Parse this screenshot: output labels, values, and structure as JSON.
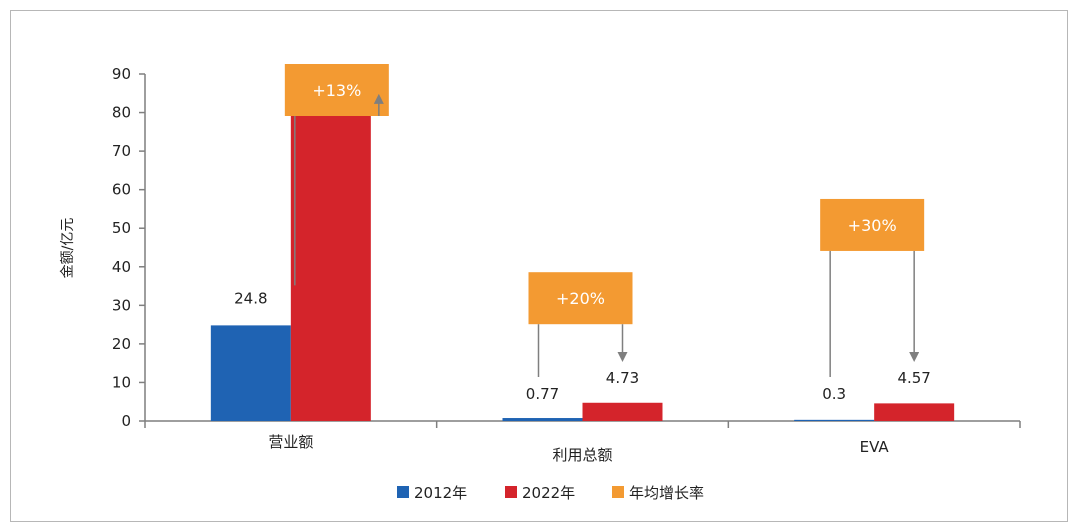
{
  "chart_data": {
    "type": "bar",
    "title": "",
    "xlabel": "",
    "ylabel": "金额/亿元",
    "ylim": [
      0,
      90
    ],
    "yticks": [
      0,
      10,
      20,
      30,
      40,
      50,
      60,
      70,
      80,
      90
    ],
    "categories": [
      "营业额",
      "利用总额",
      "EVA"
    ],
    "series": [
      {
        "name": "2012年",
        "color": "#1f63b3",
        "values": [
          24.8,
          0.77,
          0.3
        ],
        "labels": [
          "24.8",
          "0.77",
          "0.3"
        ]
      },
      {
        "name": "2022年",
        "color": "#d4242b",
        "values": [
          82,
          4.73,
          4.57
        ],
        "labels": [
          "82",
          "4.73",
          "4.57"
        ]
      }
    ],
    "growth": {
      "name": "年均增长率",
      "color": "#f39a32",
      "labels": [
        "+13%",
        "+20%",
        "+30%"
      ]
    },
    "legend_position": "bottom",
    "grid": false
  }
}
